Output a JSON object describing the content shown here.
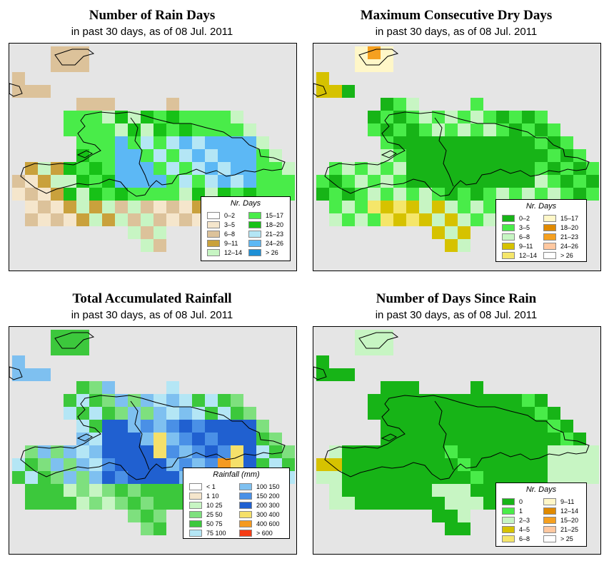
{
  "panels": [
    {
      "title": "Number of Rain Days",
      "subtitle": "in past 30 days, as of  08 Jul. 2011",
      "legend": {
        "title": "Nr. Days",
        "items": [
          {
            "label": "0–2",
            "color": "#ffffff"
          },
          {
            "label": "3–5",
            "color": "#f5e6cc"
          },
          {
            "label": "6–8",
            "color": "#dcc29a"
          },
          {
            "label": "9–11",
            "color": "#c9a13c"
          },
          {
            "label": "12–14",
            "color": "#c7f5c3"
          },
          {
            "label": "15–17",
            "color": "#49ec49"
          },
          {
            "label": "18–20",
            "color": "#17c117"
          },
          {
            "label": "21–23",
            "color": "#b4e6f5"
          },
          {
            "label": "24–26",
            "color": "#5cb8f5"
          },
          {
            "label": "> 26",
            "color": "#1e90d6"
          }
        ]
      }
    },
    {
      "title": "Maximum Consecutive Dry Days",
      "subtitle": "in past 30 days, as of  08 Jul. 2011",
      "legend": {
        "title": "Nr. Days",
        "items": [
          {
            "label": "0–2",
            "color": "#17b417"
          },
          {
            "label": "3–5",
            "color": "#49ec49"
          },
          {
            "label": "6–8",
            "color": "#c7f5c3"
          },
          {
            "label": "9–11",
            "color": "#d6c200"
          },
          {
            "label": "12–14",
            "color": "#f5e66a"
          },
          {
            "label": "15–17",
            "color": "#fff7c8"
          },
          {
            "label": "18–20",
            "color": "#e08a00"
          },
          {
            "label": "21–23",
            "color": "#f5a020"
          },
          {
            "label": "24–26",
            "color": "#ffc8a0"
          },
          {
            "label": "> 26",
            "color": "#ffffff"
          }
        ]
      }
    },
    {
      "title": "Total Accumulated Rainfall",
      "subtitle": "in past 30 days, as of  08 Jul. 2011",
      "legend": {
        "title": "Rainfall (mm)",
        "items": [
          {
            "label": "< 1",
            "color": "#ffffff"
          },
          {
            "label": "1   10",
            "color": "#f5e6cc"
          },
          {
            "label": "10   25",
            "color": "#c7f5c3"
          },
          {
            "label": "25   50",
            "color": "#7ee07e"
          },
          {
            "label": "50   75",
            "color": "#3cc83c"
          },
          {
            "label": "75   100",
            "color": "#b4e6f5"
          },
          {
            "label": "100   150",
            "color": "#7ec0f0"
          },
          {
            "label": "150   200",
            "color": "#4a90e6"
          },
          {
            "label": "200   300",
            "color": "#2060d0"
          },
          {
            "label": "300   400",
            "color": "#f5e06a"
          },
          {
            "label": "400   600",
            "color": "#f59a20"
          },
          {
            "label": "> 600",
            "color": "#f53c14"
          }
        ]
      }
    },
    {
      "title": "Number of Days Since Rain",
      "subtitle": "in past 30 days, as of  08 Jul. 2011",
      "legend": {
        "title": "Nr. Days",
        "items": [
          {
            "label": "0",
            "color": "#17b417"
          },
          {
            "label": "1",
            "color": "#49ec49"
          },
          {
            "label": "2–3",
            "color": "#c7f5c3"
          },
          {
            "label": "4–5",
            "color": "#d6c200"
          },
          {
            "label": "6–8",
            "color": "#f5e66a"
          },
          {
            "label": "9–11",
            "color": "#fff7c8"
          },
          {
            "label": "12–14",
            "color": "#e08a00"
          },
          {
            "label": "15–20",
            "color": "#f5a020"
          },
          {
            "label": "21–25",
            "color": "#ffc8a0"
          },
          {
            "label": "> 25",
            "color": "#ffffff"
          }
        ]
      }
    }
  ]
}
